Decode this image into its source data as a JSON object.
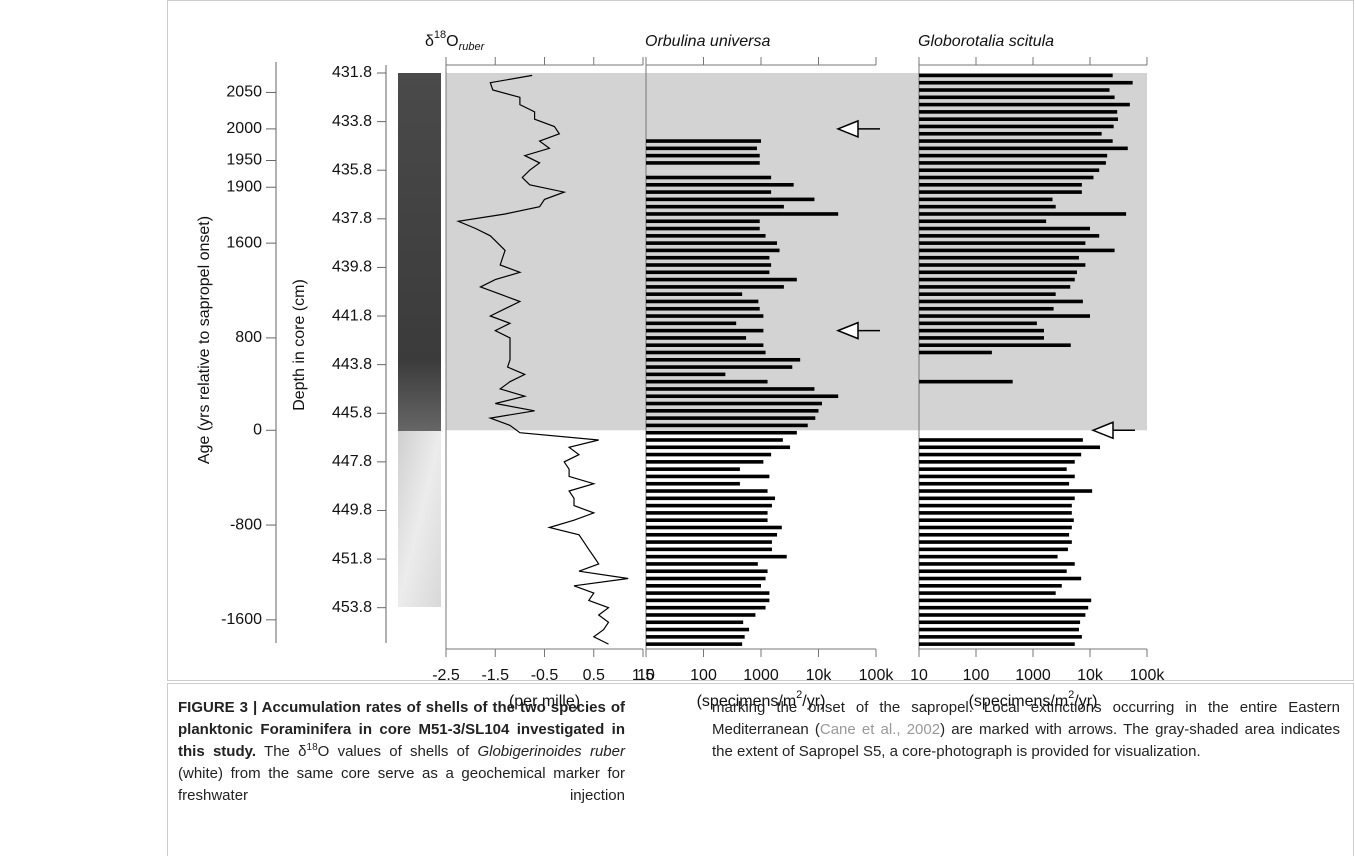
{
  "chart_data": [
    {
      "type": "line",
      "title": [
        "δ",
        "18",
        "O",
        "ruber"
      ],
      "xlabel": "(per mille)",
      "ylabel": "Depth in core (cm)",
      "y2label": "Age (yrs relative to sapropel onset)",
      "xlim": [
        -2.5,
        1.5
      ],
      "xticks": [
        -2.5,
        -1.5,
        -0.5,
        0.5,
        1.5
      ],
      "ylim": [
        431.8,
        455.5
      ],
      "yticks": [
        431.8,
        433.8,
        435.8,
        437.8,
        439.8,
        441.8,
        443.8,
        445.8,
        447.8,
        449.8,
        451.8,
        453.8
      ],
      "y2ticks": [
        2050,
        2000,
        1950,
        1900,
        1600,
        800,
        0,
        -800,
        -1600
      ],
      "y2tick_depths": [
        432.6,
        434.1,
        435.4,
        436.5,
        438.8,
        442.7,
        446.5,
        450.4,
        454.3
      ],
      "sapropel": [
        431.8,
        446.5
      ],
      "color": "#000000",
      "y": [
        431.9,
        432.2,
        432.5,
        432.8,
        433.1,
        433.4,
        433.7,
        434.0,
        434.3,
        434.6,
        434.9,
        435.2,
        435.5,
        435.8,
        436.1,
        436.4,
        436.7,
        437.0,
        437.3,
        437.6,
        437.9,
        438.2,
        438.5,
        438.8,
        439.1,
        439.4,
        439.7,
        440.0,
        440.3,
        440.6,
        440.9,
        441.2,
        441.5,
        441.8,
        442.1,
        442.4,
        442.7,
        443.0,
        443.3,
        443.6,
        443.9,
        444.2,
        444.5,
        444.8,
        445.1,
        445.4,
        445.7,
        446.0,
        446.3,
        446.6,
        446.9,
        447.2,
        447.5,
        447.8,
        448.1,
        448.4,
        448.7,
        449.0,
        449.3,
        449.6,
        449.9,
        450.2,
        450.5,
        450.8,
        451.1,
        451.4,
        451.7,
        452.0,
        452.3,
        452.6,
        452.9,
        453.2,
        453.5,
        453.8,
        454.1,
        454.4,
        454.7,
        455.0,
        455.3
      ],
      "values": [
        -0.75,
        -1.6,
        -1.55,
        -1.0,
        -1.0,
        -0.7,
        -0.7,
        -0.3,
        -0.2,
        -0.6,
        -0.4,
        -0.9,
        -0.6,
        -0.8,
        -0.95,
        -0.8,
        -0.1,
        -0.5,
        -0.6,
        -1.3,
        -2.25,
        -1.9,
        -1.6,
        -1.45,
        -1.3,
        -1.35,
        -1.4,
        -1.0,
        -1.5,
        -1.8,
        -1.4,
        -1.0,
        -1.3,
        -1.6,
        -1.2,
        -1.5,
        -1.2,
        -1.2,
        -1.2,
        -1.2,
        -1.25,
        -0.9,
        -1.2,
        -1.4,
        -0.9,
        -1.5,
        -0.7,
        -1.6,
        -1.2,
        -1.0,
        0.6,
        0.0,
        0.2,
        -0.1,
        0.0,
        0.0,
        0.5,
        0.0,
        0.1,
        0.1,
        0.5,
        0.1,
        -0.4,
        0.2,
        0.3,
        0.4,
        0.5,
        0.6,
        0.2,
        1.2,
        0.1,
        0.5,
        0.4,
        0.8,
        0.6,
        0.8,
        0.7,
        0.5,
        0.8
      ]
    },
    {
      "type": "bar",
      "title": "Orbulina universa",
      "xlabel": [
        "(specimens/m",
        "2",
        "/yr)"
      ],
      "xscale": "log",
      "color": "#000000",
      "xlim": [
        10,
        100000
      ],
      "xticks": [
        10,
        100,
        1000,
        {
          "value": 10000,
          "label": "10k"
        },
        {
          "value": 100000,
          "label": "100k"
        }
      ],
      "ylim": [
        431.8,
        455.5
      ],
      "arrows": [
        434.1,
        442.4
      ],
      "y": [
        431.9,
        432.2,
        432.5,
        432.8,
        433.1,
        433.4,
        433.7,
        434.0,
        434.3,
        434.6,
        434.9,
        435.2,
        435.5,
        435.8,
        436.1,
        436.4,
        436.7,
        437.0,
        437.3,
        437.6,
        437.9,
        438.2,
        438.5,
        438.8,
        439.1,
        439.4,
        439.7,
        440.0,
        440.3,
        440.6,
        440.9,
        441.2,
        441.5,
        441.8,
        442.1,
        442.4,
        442.7,
        443.0,
        443.3,
        443.6,
        443.9,
        444.2,
        444.5,
        444.8,
        445.1,
        445.4,
        445.7,
        446.0,
        446.3,
        446.6,
        446.9,
        447.2,
        447.5,
        447.8,
        448.1,
        448.4,
        448.7,
        449.0,
        449.3,
        449.6,
        449.9,
        450.2,
        450.5,
        450.8,
        451.1,
        451.4,
        451.7,
        452.0,
        452.3,
        452.6,
        452.9,
        453.2,
        453.5,
        453.8,
        454.1,
        454.4,
        454.7,
        455.0,
        455.3
      ],
      "values": [
        null,
        null,
        null,
        null,
        null,
        null,
        null,
        null,
        null,
        1000,
        850,
        950,
        950,
        null,
        1500,
        3700,
        1500,
        8500,
        2500,
        22000,
        950,
        950,
        1200,
        1900,
        2100,
        1400,
        1500,
        1400,
        4200,
        2500,
        470,
        900,
        950,
        1100,
        370,
        1100,
        550,
        1100,
        1200,
        4800,
        3500,
        240,
        1300,
        8500,
        22000,
        11500,
        10000,
        8800,
        6500,
        4200,
        2400,
        3200,
        1500,
        1100,
        430,
        1400,
        430,
        1300,
        1750,
        1550,
        1300,
        1300,
        2300,
        1900,
        1550,
        1550,
        2800,
        880,
        1300,
        1200,
        1000,
        1400,
        1400,
        1200,
        800,
        490,
        620,
        520,
        470
      ]
    },
    {
      "type": "bar",
      "title": "Globorotalia scitula",
      "xlabel": [
        "(specimens/m",
        "2",
        "/yr)"
      ],
      "xscale": "log",
      "color": "#000000",
      "xlim": [
        10,
        100000
      ],
      "xticks": [
        10,
        100,
        1000,
        {
          "value": 10000,
          "label": "10k"
        },
        {
          "value": 100000,
          "label": "100k"
        }
      ],
      "ylim": [
        431.8,
        455.5
      ],
      "arrows": [
        446.5
      ],
      "y": [
        431.9,
        432.2,
        432.5,
        432.8,
        433.1,
        433.4,
        433.7,
        434.0,
        434.3,
        434.6,
        434.9,
        435.2,
        435.5,
        435.8,
        436.1,
        436.4,
        436.7,
        437.0,
        437.3,
        437.6,
        437.9,
        438.2,
        438.5,
        438.8,
        439.1,
        439.4,
        439.7,
        440.0,
        440.3,
        440.6,
        440.9,
        441.2,
        441.5,
        441.8,
        442.1,
        442.4,
        442.7,
        443.0,
        443.3,
        443.6,
        443.9,
        444.2,
        444.5,
        444.8,
        445.1,
        445.4,
        445.7,
        446.0,
        446.3,
        446.6,
        446.9,
        447.2,
        447.5,
        447.8,
        448.1,
        448.4,
        448.7,
        449.0,
        449.3,
        449.6,
        449.9,
        450.2,
        450.5,
        450.8,
        451.1,
        451.4,
        451.7,
        452.0,
        452.3,
        452.6,
        452.9,
        453.2,
        453.5,
        453.8,
        454.1,
        454.4,
        454.7,
        455.0,
        455.3
      ],
      "values": [
        25000,
        56000,
        22000,
        27000,
        50000,
        30000,
        31000,
        26000,
        16000,
        25000,
        46000,
        20000,
        19000,
        14500,
        11500,
        7200,
        7200,
        2200,
        2500,
        43000,
        1700,
        10000,
        14500,
        8300,
        27000,
        6400,
        8300,
        5900,
        5400,
        4500,
        2500,
        7500,
        2300,
        10000,
        1170,
        1560,
        1560,
        4600,
        190,
        null,
        null,
        null,
        440,
        null,
        null,
        null,
        null,
        null,
        null,
        null,
        7500,
        15000,
        7000,
        5400,
        3900,
        5400,
        4300,
        10900,
        5400,
        4800,
        4800,
        5200,
        4800,
        4300,
        4800,
        4100,
        2700,
        5400,
        3900,
        7000,
        3200,
        2500,
        10500,
        9300,
        8300,
        6700,
        6400,
        7200,
        5400
      ]
    }
  ],
  "caption": {
    "heading": "FIGURE 3 | Accumulation rates of shells of the two species of planktonic Foraminifera in core M51-3/SL104 investigated in this study.",
    "parts": [
      "The δ",
      "18",
      "O values of shells of",
      "Globigerinoides ruber",
      "(white) from the same core serve as a geochemical marker for freshwater injection",
      "marking the onset of the sapropel. Local extinctions occurring in the entire Eastern Mediterranean (",
      "Cane et al., 2002",
      ") are marked with arrows. The gray-shaded area indicates the extent of Sapropel S5, a core-photograph is provided for visualization."
    ]
  }
}
